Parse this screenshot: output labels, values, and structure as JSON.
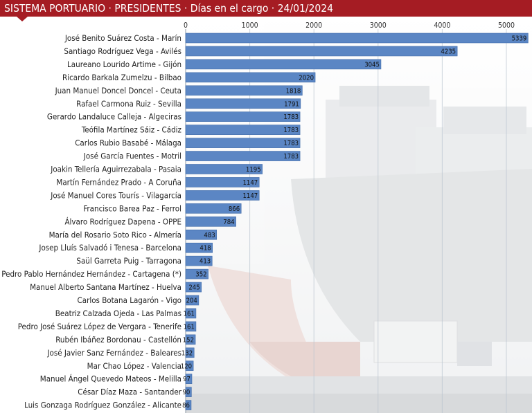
{
  "header": {
    "title": "SISTEMA PORTUARIO · PRESIDENTES · Días en el cargo · 24/01/2024"
  },
  "chart_data": {
    "type": "bar",
    "orientation": "horizontal",
    "title": "SISTEMA PORTUARIO · PRESIDENTES · Días en el cargo · 24/01/2024",
    "xlim": [
      0,
      5400
    ],
    "xticks": [
      0,
      1000,
      2000,
      3000,
      4000,
      5000
    ],
    "grid": true,
    "bar_color": "#5b86c4",
    "categories": [
      "José Benito Suárez Costa - Marín",
      "Santiago Rodríguez Vega - Avilés",
      "Laureano Lourido Artime - Gijón",
      "Ricardo Barkala Zumelzu - Bilbao",
      "Juan Manuel Doncel Doncel - Ceuta",
      "Rafael Carmona Ruiz - Sevilla",
      "Gerardo Landaluce Calleja - Algeciras",
      "Teófila Martínez Sáiz - Cádiz",
      "Carlos Rubio Basabé - Málaga",
      "José García Fuentes - Motril",
      "Joakin Tellería Aguirrezabala - Pasaia",
      "Martín Fernández Prado - A Coruña",
      "José Manuel Cores Tourís - Vilagarcía",
      "Francisco Barea Paz - Ferrol",
      "Álvaro Rodríguez Dapena - OPPE",
      "María del Rosario Soto Rico - Almería",
      "Josep Lluís Salvadó i Tenesa - Barcelona",
      "Saül Garreta Puig - Tarragona",
      "Pedro Pablo Hernández Hernández - Cartagena (*)",
      "Manuel Alberto Santana Martínez - Huelva",
      "Carlos Botana Lagarón - Vigo",
      "Beatriz Calzada Ojeda - Las Palmas",
      "Pedro José Suárez López de Vergara - Tenerife",
      "Rubén Ibáñez Bordonau - Castellón",
      "José Javier Sanz Fernández - Baleares",
      "Mar Chao López - Valencia",
      "Manuel Ángel Quevedo Mateos - Melilla",
      "César Díaz Maza - Santander",
      "Luis Gonzaga Rodríguez González - Alicante"
    ],
    "values": [
      5339,
      4235,
      3045,
      2020,
      1818,
      1791,
      1783,
      1783,
      1783,
      1783,
      1195,
      1147,
      1147,
      866,
      784,
      483,
      418,
      413,
      352,
      245,
      204,
      161,
      161,
      152,
      132,
      120,
      97,
      90,
      86
    ]
  }
}
